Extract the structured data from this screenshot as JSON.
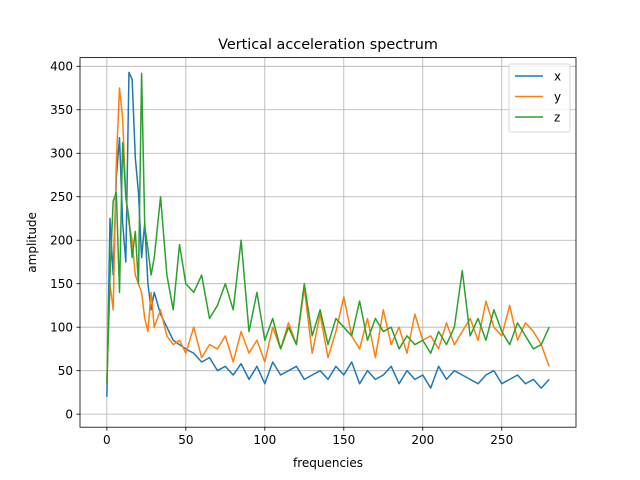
{
  "chart_data": {
    "type": "line",
    "title": "Vertical acceleration spectrum",
    "xlabel": "frequencies",
    "ylabel": "amplitude",
    "xlim": [
      -17,
      297
    ],
    "ylim": [
      -15,
      410
    ],
    "xticks": [
      0,
      50,
      100,
      150,
      200,
      250
    ],
    "yticks": [
      0,
      50,
      100,
      150,
      200,
      250,
      300,
      350,
      400
    ],
    "grid": true,
    "legend_position": "top-right",
    "series": [
      {
        "name": "x",
        "color": "#1f77b4",
        "x": [
          0,
          2,
          4,
          6,
          8,
          10,
          12,
          14,
          16,
          18,
          20,
          22,
          24,
          26,
          28,
          30,
          34,
          38,
          42,
          46,
          50,
          55,
          60,
          65,
          70,
          75,
          80,
          85,
          90,
          95,
          100,
          105,
          110,
          115,
          120,
          125,
          130,
          135,
          140,
          145,
          150,
          155,
          160,
          165,
          170,
          175,
          180,
          185,
          190,
          195,
          200,
          205,
          210,
          215,
          220,
          225,
          230,
          235,
          240,
          245,
          250,
          255,
          260,
          265,
          270,
          275,
          280
        ],
        "values": [
          20,
          225,
          160,
          272,
          318,
          220,
          175,
          393,
          385,
          295,
          255,
          180,
          220,
          150,
          120,
          140,
          115,
          100,
          85,
          80,
          75,
          70,
          60,
          65,
          50,
          55,
          45,
          58,
          40,
          55,
          35,
          60,
          45,
          50,
          55,
          40,
          45,
          50,
          40,
          55,
          45,
          60,
          35,
          50,
          40,
          45,
          55,
          35,
          50,
          40,
          45,
          30,
          55,
          40,
          50,
          45,
          40,
          35,
          45,
          50,
          35,
          40,
          45,
          35,
          40,
          30,
          40
        ]
      },
      {
        "name": "y",
        "color": "#ff7f0e",
        "x": [
          0,
          2,
          4,
          6,
          8,
          10,
          12,
          14,
          16,
          18,
          20,
          22,
          24,
          26,
          28,
          30,
          34,
          38,
          42,
          46,
          50,
          55,
          60,
          65,
          70,
          75,
          80,
          85,
          90,
          95,
          100,
          105,
          110,
          115,
          120,
          125,
          130,
          135,
          140,
          145,
          150,
          155,
          160,
          165,
          170,
          175,
          180,
          185,
          190,
          195,
          200,
          205,
          210,
          215,
          220,
          225,
          230,
          235,
          240,
          245,
          250,
          255,
          260,
          265,
          270,
          275,
          280
        ],
        "values": [
          40,
          150,
          120,
          290,
          375,
          340,
          250,
          220,
          200,
          160,
          150,
          140,
          110,
          95,
          140,
          100,
          120,
          90,
          80,
          85,
          70,
          100,
          65,
          80,
          75,
          90,
          60,
          95,
          70,
          85,
          60,
          100,
          75,
          105,
          80,
          145,
          70,
          115,
          65,
          95,
          135,
          90,
          75,
          110,
          65,
          120,
          80,
          100,
          70,
          115,
          85,
          90,
          75,
          105,
          80,
          95,
          110,
          85,
          130,
          100,
          90,
          125,
          85,
          105,
          95,
          80,
          55
        ]
      },
      {
        "name": "z",
        "color": "#2ca02c",
        "x": [
          0,
          2,
          4,
          6,
          8,
          10,
          12,
          14,
          16,
          18,
          20,
          22,
          24,
          26,
          28,
          30,
          34,
          38,
          42,
          46,
          50,
          55,
          60,
          65,
          70,
          75,
          80,
          85,
          90,
          95,
          100,
          105,
          110,
          115,
          120,
          125,
          130,
          135,
          140,
          145,
          150,
          155,
          160,
          165,
          170,
          175,
          180,
          185,
          190,
          195,
          200,
          205,
          210,
          215,
          220,
          225,
          230,
          235,
          240,
          245,
          250,
          255,
          260,
          265,
          270,
          275,
          280
        ],
        "values": [
          35,
          160,
          245,
          255,
          140,
          312,
          250,
          225,
          180,
          210,
          150,
          392,
          215,
          190,
          160,
          180,
          250,
          160,
          120,
          195,
          150,
          140,
          160,
          110,
          125,
          150,
          120,
          200,
          95,
          140,
          85,
          110,
          75,
          100,
          80,
          150,
          90,
          120,
          80,
          110,
          100,
          90,
          130,
          85,
          110,
          95,
          100,
          75,
          90,
          80,
          85,
          70,
          95,
          80,
          100,
          165,
          90,
          110,
          85,
          120,
          95,
          80,
          105,
          90,
          75,
          80,
          100
        ]
      }
    ]
  }
}
